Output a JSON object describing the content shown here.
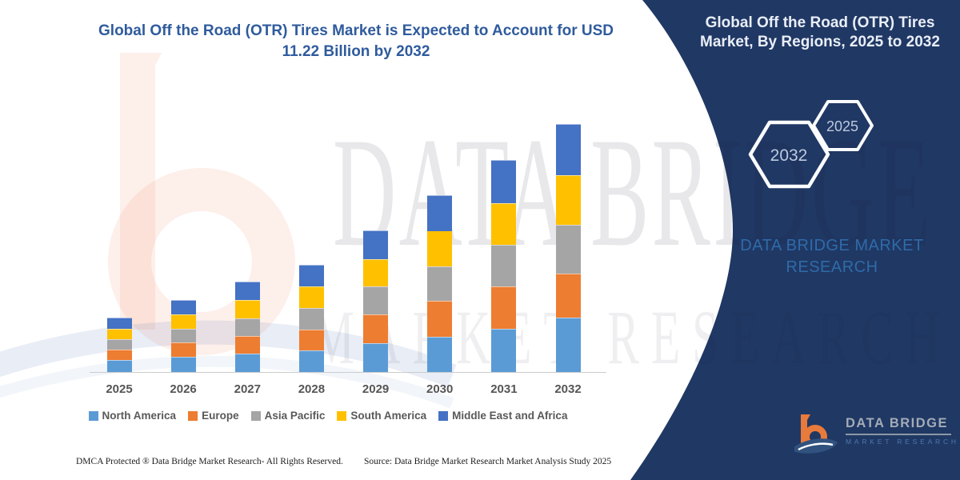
{
  "colors": {
    "panel_navy": "#203864",
    "title_blue": "#2f5b9d",
    "axis_label_gray": "#595959",
    "brand_teal_blue": "#2e6ba9",
    "hexagon_text": "#bdc9df",
    "logo_orange": "#e87a3c",
    "logo_swoosh_blue": "#31527f"
  },
  "chart": {
    "title_line1": "Global Off the Road (OTR) Tires Market is Expected to Account for USD",
    "title_line2": "11.22 Billion by 2032"
  },
  "chart_data": {
    "type": "bar",
    "stacked": true,
    "title": "Global Off the Road (OTR) Tires Market is Expected to Account for USD 11.22 Billion by 2032",
    "unit": "USD Billion",
    "categories": [
      "2025",
      "2026",
      "2027",
      "2028",
      "2029",
      "2030",
      "2031",
      "2032"
    ],
    "series": [
      {
        "name": "North America",
        "color": "#5B9BD5",
        "values": [
          0.55,
          0.68,
          0.84,
          0.97,
          1.3,
          1.58,
          1.95,
          2.45
        ]
      },
      {
        "name": "Europe",
        "color": "#ED7D31",
        "values": [
          0.45,
          0.65,
          0.79,
          0.95,
          1.3,
          1.64,
          1.93,
          2.0
        ]
      },
      {
        "name": "Asia Pacific",
        "color": "#A5A5A5",
        "values": [
          0.47,
          0.62,
          0.79,
          0.97,
          1.26,
          1.56,
          1.88,
          2.2
        ]
      },
      {
        "name": "South America",
        "color": "#FFC000",
        "values": [
          0.5,
          0.66,
          0.83,
          0.98,
          1.24,
          1.61,
          1.89,
          2.27
        ]
      },
      {
        "name": "Middle East and Africa",
        "color": "#4472C4",
        "values": [
          0.48,
          0.65,
          0.83,
          0.98,
          1.3,
          1.61,
          1.95,
          2.3
        ]
      }
    ],
    "totals": [
      2.45,
      3.26,
      4.08,
      4.85,
      6.4,
      8.0,
      9.6,
      11.22
    ],
    "ylim": [
      0,
      11.5
    ],
    "grid": false,
    "axis_labels_shown": false,
    "legend_position": "bottom"
  },
  "right_panel": {
    "title_line1": "Global Off the Road (OTR) Tires",
    "title_line2": "Market, By Regions, 2025 to 2032",
    "hexagon_large_label": "2032",
    "hexagon_small_label": "2025",
    "brand_line1": "DATA BRIDGE MARKET",
    "brand_line2": "RESEARCH"
  },
  "watermark": {
    "row1": "DATA BRIDGE",
    "row2": "MARKET RESEARCH"
  },
  "logo": {
    "name": "DATA BRIDGE",
    "subtitle": "MARKET RESEARCH"
  },
  "footer": {
    "left": "DMCA Protected ® Data Bridge Market Research-  All Rights Reserved.",
    "source": "Source: Data Bridge Market Research  Market Analysis Study 2025"
  }
}
